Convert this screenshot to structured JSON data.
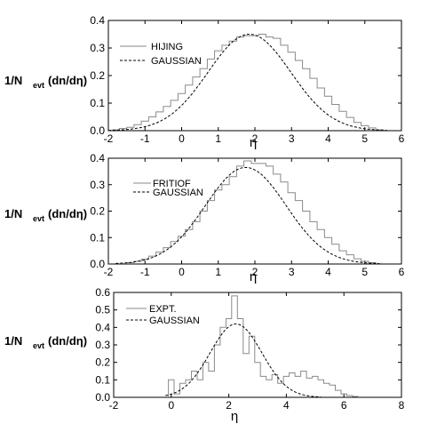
{
  "chart_data": [
    {
      "type": "line",
      "xlabel": "η",
      "ylabel_parts": [
        "1/N",
        "evt",
        "(dn/dη)"
      ],
      "xlim": [
        -2,
        6
      ],
      "ylim": [
        0,
        0.4
      ],
      "xticks": [
        -2,
        -1,
        0,
        1,
        2,
        3,
        4,
        5,
        6
      ],
      "yticks": [
        0.0,
        0.1,
        0.2,
        0.3,
        0.4
      ],
      "legend_position": "top-left",
      "series": [
        {
          "name": "HIJING",
          "style": "histogram",
          "color": "#8a8a8a",
          "bin_width": 0.2,
          "x": [
            -1.8,
            -1.6,
            -1.4,
            -1.2,
            -1.0,
            -0.8,
            -0.6,
            -0.4,
            -0.2,
            0.0,
            0.2,
            0.4,
            0.6,
            0.8,
            1.0,
            1.2,
            1.4,
            1.6,
            1.8,
            2.0,
            2.2,
            2.4,
            2.6,
            2.8,
            3.0,
            3.2,
            3.4,
            3.6,
            3.8,
            4.0,
            4.2,
            4.4,
            4.6,
            4.8,
            5.0,
            5.2,
            5.4
          ],
          "values": [
            0.003,
            0.008,
            0.012,
            0.022,
            0.035,
            0.05,
            0.068,
            0.088,
            0.11,
            0.135,
            0.165,
            0.195,
            0.225,
            0.26,
            0.29,
            0.31,
            0.325,
            0.34,
            0.345,
            0.345,
            0.35,
            0.34,
            0.335,
            0.31,
            0.285,
            0.255,
            0.225,
            0.19,
            0.155,
            0.125,
            0.095,
            0.07,
            0.048,
            0.03,
            0.018,
            0.01,
            0.003
          ]
        },
        {
          "name": "GAUSSIAN",
          "style": "dashed",
          "color": "#000000",
          "mean": 1.85,
          "sigma": 1.13,
          "amplitude": 0.35,
          "x_range": [
            -2,
            5.6
          ]
        }
      ]
    },
    {
      "type": "line",
      "xlabel": "η",
      "ylabel_parts": [
        "1/N",
        "evt",
        "(dn/dη)"
      ],
      "xlim": [
        -2,
        6
      ],
      "ylim": [
        0,
        0.4
      ],
      "xticks": [
        -2,
        -1,
        0,
        1,
        2,
        3,
        4,
        5,
        6
      ],
      "yticks": [
        0.0,
        0.1,
        0.2,
        0.3,
        0.4
      ],
      "legend_position": "top-left",
      "series": [
        {
          "name": "FRITIOF",
          "style": "histogram",
          "color": "#8a8a8a",
          "bin_width": 0.2,
          "x": [
            -1.6,
            -1.4,
            -1.2,
            -1.0,
            -0.8,
            -0.6,
            -0.4,
            -0.2,
            0.0,
            0.2,
            0.4,
            0.6,
            0.8,
            1.0,
            1.2,
            1.4,
            1.6,
            1.8,
            2.0,
            2.2,
            2.4,
            2.6,
            2.8,
            3.0,
            3.2,
            3.4,
            3.6,
            3.8,
            4.0,
            4.2,
            4.4,
            4.6,
            4.8,
            5.0,
            5.2,
            5.4
          ],
          "values": [
            0.002,
            0.005,
            0.01,
            0.018,
            0.03,
            0.045,
            0.062,
            0.085,
            0.105,
            0.13,
            0.16,
            0.2,
            0.24,
            0.28,
            0.3,
            0.33,
            0.37,
            0.39,
            0.38,
            0.38,
            0.37,
            0.34,
            0.31,
            0.27,
            0.24,
            0.2,
            0.16,
            0.13,
            0.1,
            0.075,
            0.05,
            0.035,
            0.02,
            0.01,
            0.005,
            0.002
          ]
        },
        {
          "name": "GAUSSIAN",
          "style": "dashed",
          "color": "#000000",
          "mean": 1.75,
          "sigma": 1.1,
          "amplitude": 0.365,
          "x_range": [
            -1.8,
            5.4
          ]
        }
      ]
    },
    {
      "type": "line",
      "xlabel": "η",
      "ylabel_parts": [
        "1/N",
        "evt",
        "(dn/dη)"
      ],
      "xlim": [
        -2,
        8
      ],
      "ylim": [
        0,
        0.6
      ],
      "xticks": [
        -2,
        0,
        2,
        4,
        6,
        8
      ],
      "yticks": [
        0.0,
        0.1,
        0.2,
        0.3,
        0.4,
        0.5,
        0.6
      ],
      "legend_position": "top-left",
      "series": [
        {
          "name": "EXPT.",
          "style": "histogram",
          "color": "#8a8a8a",
          "bin_width": 0.2,
          "x": [
            0.0,
            0.2,
            0.4,
            0.6,
            0.8,
            1.0,
            1.2,
            1.4,
            1.6,
            1.8,
            2.0,
            2.2,
            2.4,
            2.6,
            2.8,
            3.0,
            3.2,
            3.4,
            3.6,
            3.8,
            4.0,
            4.2,
            4.4,
            4.6,
            4.8,
            5.0,
            5.2,
            5.4,
            5.6,
            5.8,
            6.0,
            6.2,
            6.4
          ],
          "values": [
            0.1,
            0.02,
            0.08,
            0.1,
            0.15,
            0.1,
            0.2,
            0.15,
            0.3,
            0.4,
            0.45,
            0.58,
            0.45,
            0.25,
            0.35,
            0.2,
            0.12,
            0.1,
            0.13,
            0.08,
            0.12,
            0.14,
            0.12,
            0.15,
            0.11,
            0.12,
            0.1,
            0.08,
            0.07,
            0.04,
            0.02,
            0.01,
            0.005
          ]
        },
        {
          "name": "GAUSSIAN",
          "style": "dashed",
          "color": "#000000",
          "mean": 2.25,
          "sigma": 0.9,
          "amplitude": 0.42,
          "x_range": [
            -0.2,
            5.2
          ]
        }
      ]
    }
  ]
}
